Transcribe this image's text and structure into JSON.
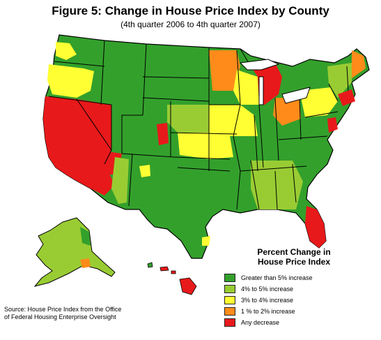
{
  "title": "Figure 5: Change in House Price Index by County",
  "subtitle": "(4th quarter 2006 to 4th quarter 2007)",
  "legend": {
    "title_line1": "Percent Change in",
    "title_line2": "House Price Index",
    "items": [
      {
        "label": "Greater than 5% increase",
        "color": "#33a02c"
      },
      {
        "label": "4% to 5% increase",
        "color": "#99cc33"
      },
      {
        "label": "3% to 4% increase",
        "color": "#ffff33"
      },
      {
        "label": "1 % to 2% increase",
        "color": "#ff8c1a"
      },
      {
        "label": "Any decrease",
        "color": "#e8191a"
      }
    ]
  },
  "source": {
    "line1": "Source: House Price Index from the Office",
    "line2": "of Federal Housing Enterprise Oversight"
  }
}
